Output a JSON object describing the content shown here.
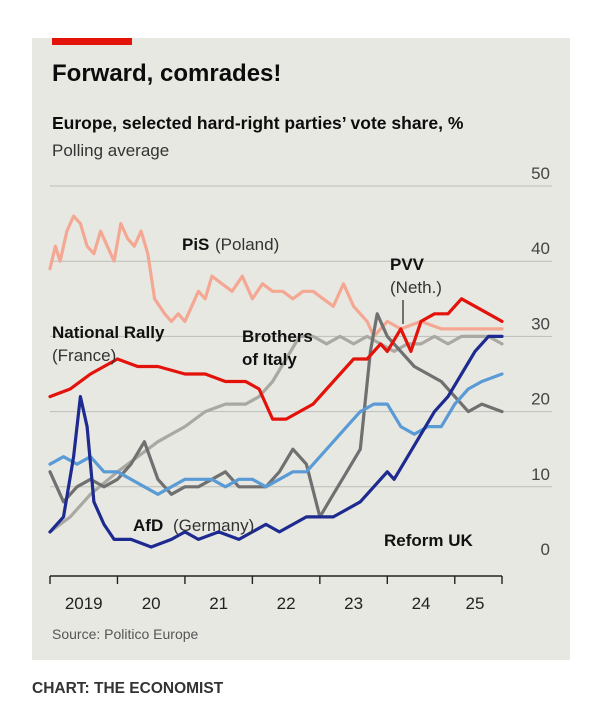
{
  "title": "Forward, comrades!",
  "subtitle": "Europe, selected hard-right parties’ vote share, %",
  "subtitle2": "Polling average",
  "source": "Source: Politico Europe",
  "credit": "CHART: THE ECONOMIST",
  "chart_data": {
    "type": "line",
    "title": "Forward, comrades!",
    "ylim": [
      0,
      50
    ],
    "yticks": [
      0,
      10,
      20,
      30,
      40,
      50
    ],
    "xlim": [
      2019.0,
      2025.7
    ],
    "xtick_labels": [
      {
        "x": 2019.5,
        "label": "2019"
      },
      {
        "x": 2020.5,
        "label": "20"
      },
      {
        "x": 2021.5,
        "label": "21"
      },
      {
        "x": 2022.5,
        "label": "22"
      },
      {
        "x": 2023.5,
        "label": "23"
      },
      {
        "x": 2024.5,
        "label": "24"
      },
      {
        "x": 2025.3,
        "label": "25"
      }
    ],
    "grid": true,
    "series": [
      {
        "name": "PiS",
        "label": "PiS",
        "label_country": "(Poland)",
        "color": "#f4a893",
        "x": [
          2019.0,
          2019.08,
          2019.15,
          2019.25,
          2019.35,
          2019.45,
          2019.55,
          2019.65,
          2019.75,
          2019.85,
          2019.95,
          2020.05,
          2020.15,
          2020.25,
          2020.35,
          2020.45,
          2020.55,
          2020.7,
          2020.8,
          2020.9,
          2021.0,
          2021.1,
          2021.2,
          2021.3,
          2021.4,
          2021.55,
          2021.7,
          2021.85,
          2022.0,
          2022.15,
          2022.3,
          2022.45,
          2022.6,
          2022.75,
          2022.9,
          2023.05,
          2023.2,
          2023.35,
          2023.5,
          2023.6,
          2023.7,
          2023.8,
          2023.9,
          2024.0,
          2024.2,
          2024.5,
          2024.8,
          2025.1,
          2025.4,
          2025.7
        ],
        "values": [
          39,
          42,
          40,
          44,
          46,
          45,
          42,
          41,
          44,
          42,
          40,
          45,
          43,
          42,
          44,
          41,
          35,
          33,
          32,
          33,
          32,
          34,
          36,
          35,
          38,
          37,
          36,
          38,
          35,
          37,
          36,
          36,
          35,
          36,
          36,
          35,
          34,
          37,
          34,
          33,
          32,
          30,
          31,
          32,
          31,
          32,
          31,
          31,
          31,
          31
        ]
      },
      {
        "name": "National Rally",
        "label": "National Rally",
        "label_country": "(France)",
        "color": "#e3120b",
        "x": [
          2019.0,
          2019.3,
          2019.6,
          2020.0,
          2020.3,
          2020.6,
          2021.0,
          2021.3,
          2021.6,
          2021.9,
          2022.1,
          2022.3,
          2022.5,
          2022.7,
          2022.9,
          2023.1,
          2023.3,
          2023.5,
          2023.7,
          2023.9,
          2024.0,
          2024.2,
          2024.35,
          2024.5,
          2024.7,
          2024.9,
          2025.1,
          2025.3,
          2025.5,
          2025.7
        ],
        "values": [
          22,
          23,
          25,
          27,
          26,
          26,
          25,
          25,
          24,
          24,
          23,
          19,
          19,
          20,
          21,
          23,
          25,
          27,
          27,
          29,
          28,
          31,
          28,
          32,
          33,
          33,
          35,
          34,
          33,
          32
        ]
      },
      {
        "name": "Brothers of Italy",
        "label": "Brothers",
        "label_country": "of Italy",
        "color": "#a9a8a3",
        "x": [
          2019.0,
          2019.3,
          2019.6,
          2020.0,
          2020.3,
          2020.6,
          2021.0,
          2021.3,
          2021.6,
          2021.9,
          2022.1,
          2022.3,
          2022.5,
          2022.7,
          2022.9,
          2023.1,
          2023.3,
          2023.5,
          2023.7,
          2023.9,
          2024.1,
          2024.3,
          2024.5,
          2024.7,
          2024.9,
          2025.1,
          2025.3,
          2025.5,
          2025.7
        ],
        "values": [
          4,
          6,
          9,
          12,
          14,
          16,
          18,
          20,
          21,
          21,
          22,
          24,
          27,
          30,
          30,
          29,
          30,
          29,
          30,
          29,
          28,
          29,
          29,
          30,
          29,
          30,
          30,
          30,
          29
        ]
      },
      {
        "name": "PVV",
        "label": "PVV",
        "label_country": "(Neth.)",
        "color": "#707070",
        "x": [
          2019.0,
          2019.2,
          2019.4,
          2019.6,
          2019.8,
          2020.0,
          2020.2,
          2020.4,
          2020.6,
          2020.8,
          2021.0,
          2021.2,
          2021.4,
          2021.6,
          2021.8,
          2022.0,
          2022.2,
          2022.4,
          2022.6,
          2022.8,
          2023.0,
          2023.2,
          2023.4,
          2023.6,
          2023.75,
          2023.85,
          2024.0,
          2024.2,
          2024.4,
          2024.6,
          2024.8,
          2025.0,
          2025.2,
          2025.4,
          2025.7
        ],
        "values": [
          12,
          8,
          10,
          11,
          10,
          11,
          13,
          16,
          11,
          9,
          10,
          10,
          11,
          12,
          10,
          10,
          10,
          12,
          15,
          13,
          6,
          9,
          12,
          15,
          28,
          33,
          30,
          28,
          26,
          25,
          24,
          22,
          20,
          21,
          20
        ]
      },
      {
        "name": "AfD",
        "label": "AfD",
        "label_country": "(Germany)",
        "color": "#5a9bd5",
        "x": [
          2019.0,
          2019.2,
          2019.4,
          2019.6,
          2019.8,
          2020.0,
          2020.2,
          2020.4,
          2020.6,
          2020.8,
          2021.0,
          2021.2,
          2021.4,
          2021.6,
          2021.8,
          2022.0,
          2022.2,
          2022.4,
          2022.6,
          2022.8,
          2023.0,
          2023.2,
          2023.4,
          2023.6,
          2023.8,
          2024.0,
          2024.2,
          2024.4,
          2024.6,
          2024.8,
          2025.0,
          2025.2,
          2025.4,
          2025.7
        ],
        "values": [
          13,
          14,
          13,
          14,
          12,
          12,
          11,
          10,
          9,
          10,
          11,
          11,
          11,
          10,
          11,
          11,
          10,
          11,
          12,
          12,
          14,
          16,
          18,
          20,
          21,
          21,
          18,
          17,
          18,
          18,
          21,
          23,
          24,
          25
        ]
      },
      {
        "name": "Reform UK",
        "label": "Reform UK",
        "label_country": "",
        "color": "#1d2a8f",
        "x": [
          2019.0,
          2019.2,
          2019.35,
          2019.45,
          2019.55,
          2019.65,
          2019.8,
          2019.95,
          2020.2,
          2020.5,
          2020.8,
          2021.0,
          2021.2,
          2021.5,
          2021.8,
          2022.0,
          2022.2,
          2022.4,
          2022.6,
          2022.8,
          2023.0,
          2023.2,
          2023.4,
          2023.6,
          2023.8,
          2024.0,
          2024.1,
          2024.3,
          2024.5,
          2024.7,
          2024.9,
          2025.1,
          2025.3,
          2025.5,
          2025.7
        ],
        "values": [
          4,
          6,
          14,
          22,
          18,
          8,
          5,
          3,
          3,
          2,
          3,
          4,
          3,
          4,
          3,
          4,
          5,
          4,
          5,
          6,
          6,
          6,
          7,
          8,
          10,
          12,
          11,
          14,
          17,
          20,
          22,
          25,
          28,
          30,
          30
        ]
      }
    ]
  }
}
